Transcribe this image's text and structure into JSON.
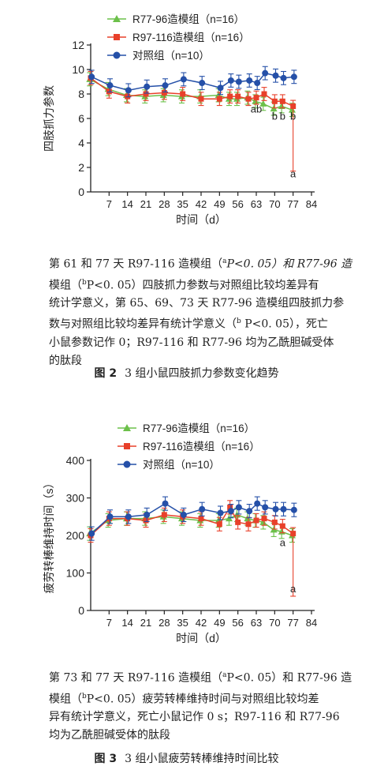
{
  "chart_data": [
    {
      "type": "line",
      "ylabel": "四肢抓力参数",
      "xlabel": "时间（d）",
      "xlim": [
        0,
        84
      ],
      "ylim": [
        0,
        12
      ],
      "xticks": [
        "7",
        "14",
        "21",
        "28",
        "35",
        "42",
        "49",
        "56",
        "63",
        "70",
        "77",
        "84"
      ],
      "yticks": [
        "0",
        "2",
        "4",
        "6",
        "8",
        "10",
        "12"
      ],
      "x": [
        0,
        7,
        14,
        21,
        28,
        35,
        42,
        49,
        53,
        56,
        60,
        63,
        66,
        70,
        73,
        77
      ],
      "series": [
        {
          "name": "R77-96造模组（n=16）",
          "color": "#6cc04a",
          "marker": "triangle",
          "values": [
            9.2,
            8.4,
            7.9,
            7.8,
            7.9,
            7.8,
            7.8,
            7.9,
            7.6,
            7.6,
            7.7,
            7.4,
            7.2,
            6.8,
            7.0,
            6.7
          ]
        },
        {
          "name": "R97-116造模组（n=16）",
          "color": "#e8402a",
          "marker": "square",
          "values": [
            9.3,
            8.2,
            7.8,
            8.0,
            8.1,
            8.0,
            7.6,
            7.6,
            7.8,
            7.8,
            7.6,
            7.7,
            8.0,
            7.4,
            7.4,
            7.0
          ]
        },
        {
          "name": "对照组（n=10）",
          "color": "#2550a8",
          "marker": "circle",
          "values": [
            9.4,
            8.7,
            8.3,
            8.6,
            8.7,
            9.2,
            8.9,
            8.5,
            9.1,
            9.0,
            9.1,
            8.9,
            9.7,
            9.5,
            9.3,
            9.4
          ]
        }
      ],
      "annotations": [
        {
          "text": "ab",
          "x": 63,
          "y": 6.5
        },
        {
          "text": "b",
          "x": 70,
          "y": 5.9
        },
        {
          "text": "b",
          "x": 73,
          "y": 5.9
        },
        {
          "text": "b",
          "x": 77,
          "y": 5.9
        },
        {
          "text": "a",
          "x": 77,
          "y": 1.2
        }
      ]
    },
    {
      "type": "line",
      "ylabel": "疲劳转棒维持时间（s）",
      "xlabel": "时间（d）",
      "xlim": [
        0,
        84
      ],
      "ylim": [
        0,
        400
      ],
      "xticks": [
        "7",
        "14",
        "21",
        "28",
        "35",
        "42",
        "49",
        "56",
        "63",
        "70",
        "77",
        "84"
      ],
      "yticks": [
        "0",
        "100",
        "200",
        "300",
        "400"
      ],
      "x": [
        0,
        7,
        14,
        21,
        28,
        35,
        42,
        49,
        53,
        56,
        60,
        63,
        66,
        70,
        73,
        77
      ],
      "series": [
        {
          "name": "R77-96造模组（n=16）",
          "color": "#6cc04a",
          "marker": "triangle",
          "values": [
            205,
            240,
            245,
            245,
            250,
            245,
            240,
            240,
            245,
            255,
            245,
            240,
            235,
            215,
            210,
            200
          ]
        },
        {
          "name": "R97-116造模组（n=16）",
          "color": "#e8402a",
          "marker": "square",
          "values": [
            200,
            245,
            245,
            240,
            255,
            250,
            245,
            230,
            275,
            235,
            230,
            240,
            245,
            235,
            225,
            205
          ]
        },
        {
          "name": "对照组（n=10）",
          "color": "#2550a8",
          "marker": "circle",
          "values": [
            205,
            250,
            250,
            255,
            285,
            255,
            270,
            260,
            265,
            275,
            265,
            285,
            275,
            270,
            270,
            268
          ]
        }
      ],
      "annotations": [
        {
          "text": "a",
          "x": 73,
          "y": 172
        },
        {
          "text": "a",
          "x": 77,
          "y": 48
        }
      ]
    }
  ],
  "notes": {
    "fig2": {
      "l1a": "第 61 和 77 天 R97-116 造模组（",
      "l1sup": "a",
      "l1b": "P<0. 05）和 R77-96 造",
      "l2a": "模组（",
      "l2sup": "b",
      "l2b": "P<0. 05）四肢抓力参数与对照组比较均差异有",
      "l3": "统计学意义，第 65、69、73 天 R77-96 造模组四肢抓力参",
      "l4a": "数与对照组比较均差异有统计学意义（",
      "l4sup": "b",
      "l4b": " P<0. 05），死亡",
      "l5": "小鼠参数记作 0；R97-116 和 R77-96 均为乙酰胆碱受体",
      "l6": "的肽段"
    },
    "fig3": {
      "l1a": "第 73 和 77 天 R97-116 造模组（",
      "l1sup": "a",
      "l1b": "P<0. 05）和 R77-96 造",
      "l2a": "模组（",
      "l2sup": "b",
      "l2b": "P<0. 05）疲劳转棒维持时间与对照组比较均差",
      "l3": "异有统计学意义，死亡小鼠记作 0 s；R97-116 和 R77-96",
      "l4": "均为乙酰胆碱受体的肽段"
    }
  },
  "captions": {
    "fig2": {
      "num": "图 2",
      "text": "3 组小鼠四肢抓力参数变化趋势"
    },
    "fig3": {
      "num": "图 3",
      "text": "3 组小鼠疲劳转棒维持时间比较"
    }
  }
}
